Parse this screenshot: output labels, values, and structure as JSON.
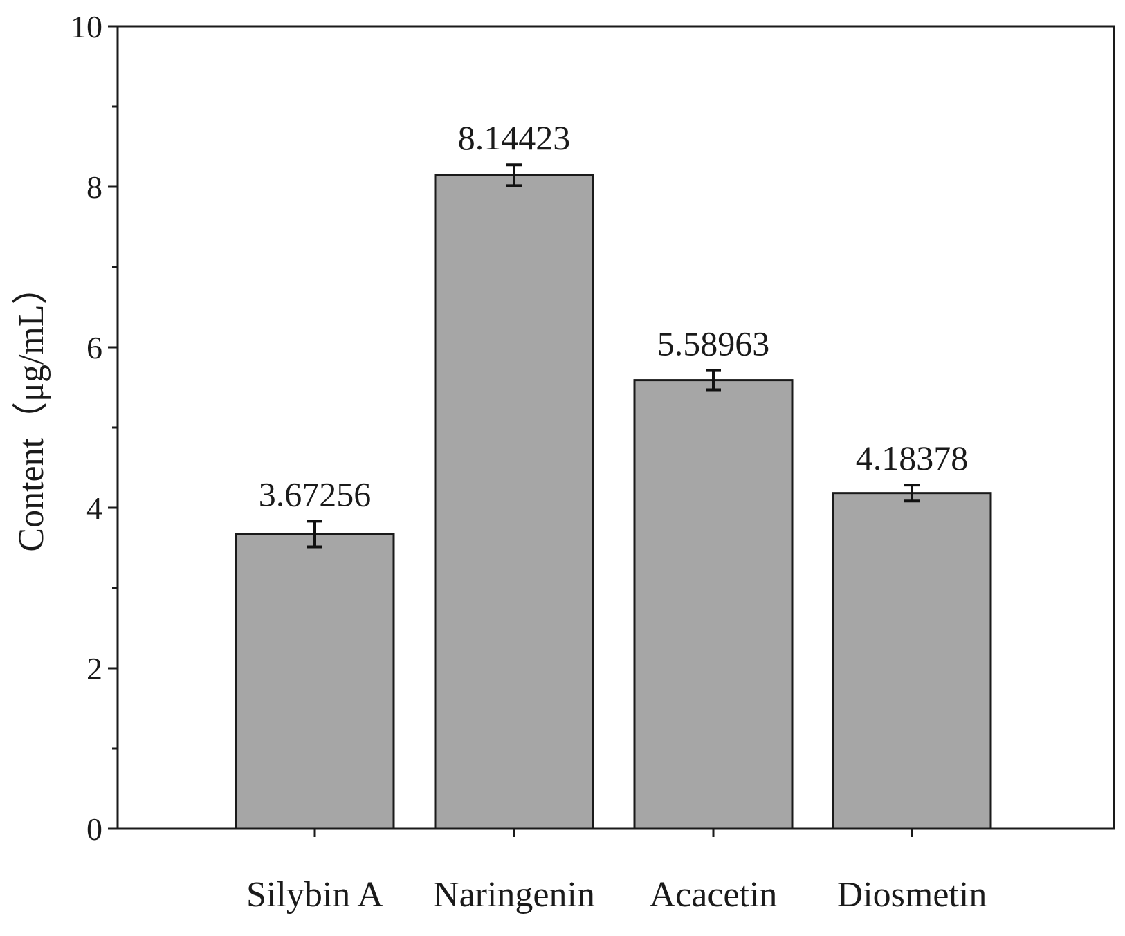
{
  "chart_data": {
    "type": "bar",
    "categories": [
      "Silybin A",
      "Naringenin",
      "Acacetin",
      "Diosmetin"
    ],
    "values": [
      3.67256,
      8.14423,
      5.58963,
      4.18378
    ],
    "value_labels": [
      "3.67256",
      "8.14423",
      "5.58963",
      "4.18378"
    ],
    "error": [
      0.16,
      0.13,
      0.12,
      0.1
    ],
    "title": "",
    "xlabel": "",
    "ylabel": "Content（μg/mL）",
    "ylim": [
      0,
      10
    ],
    "yticks": [
      0,
      2,
      4,
      6,
      8,
      10
    ],
    "ytick_labels": [
      "0",
      "2",
      "4",
      "6",
      "8",
      "10"
    ],
    "yminor_ticks": [
      1,
      3,
      5,
      7,
      9
    ],
    "grid": false,
    "legend": "none",
    "colors": {
      "bar_fill": "#a6a6a6",
      "bar_stroke": "#1a1a1a",
      "axis": "#1a1a1a",
      "error_bar": "#111111"
    }
  }
}
